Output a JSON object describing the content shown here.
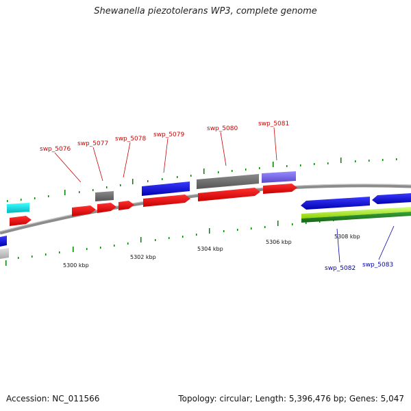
{
  "title": "Shewanella piezotolerans WP3, complete genome",
  "footer": {
    "accession": "Accession: NC_011566",
    "summary": "Topology: circular; Length: 5,396,476 bp; Genes: 5,047"
  },
  "scale_labels": [
    "5300 kbp",
    "5302 kbp",
    "5304 kbp",
    "5306 kbp",
    "5308 kbp"
  ],
  "gene_labels_top": [
    "swp_5076",
    "swp_5077",
    "swp_5078",
    "swp_5079",
    "swp_5080",
    "swp_5081"
  ],
  "gene_labels_bottom": [
    "swp_5082",
    "swp_5083"
  ],
  "colors": {
    "cds_forward": "#ff0000",
    "cds_reverse": "#0000e6",
    "trna": "#00e5ee",
    "other": "#707070",
    "purple": "#7b68ee",
    "light_green": "#adff2f",
    "dark_green": "#228b22",
    "backbone": "#8c8c8c",
    "tick": "#008000",
    "label_top": "#cc0000",
    "label_bottom": "#0000aa"
  }
}
